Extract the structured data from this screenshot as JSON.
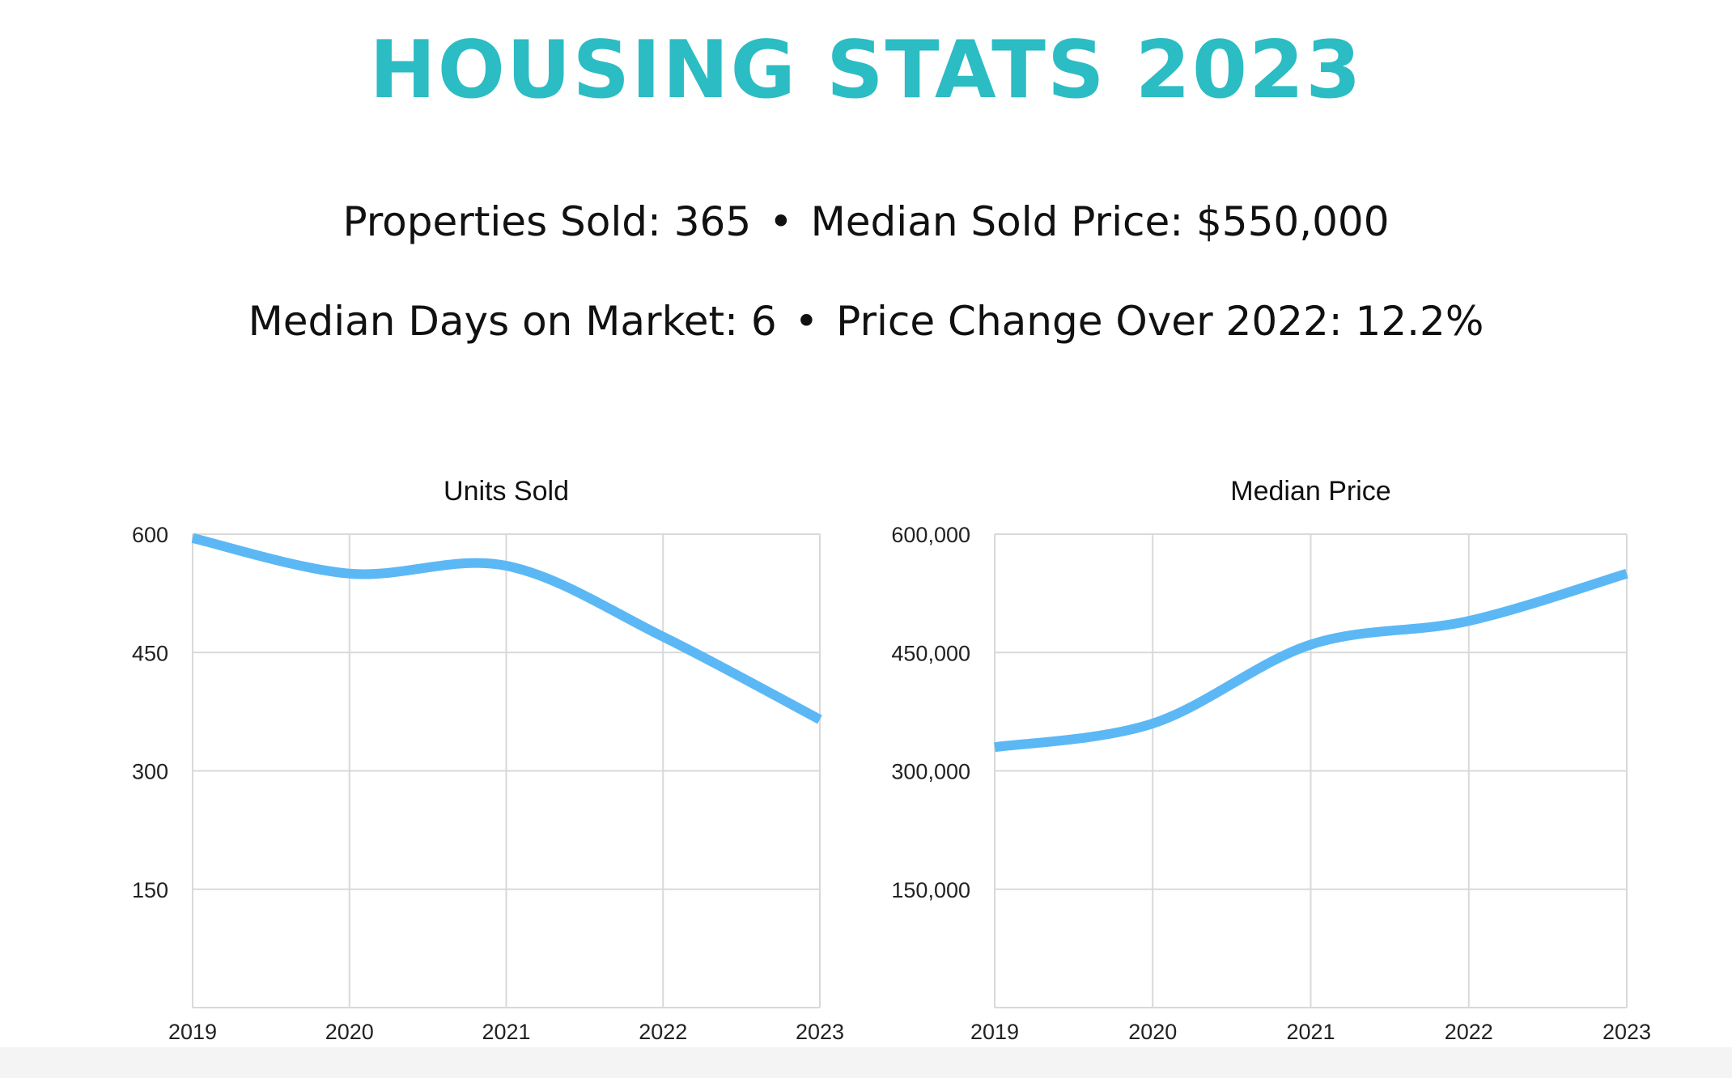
{
  "header": {
    "title": "HOUSING STATS 2023"
  },
  "stats": {
    "properties_sold": "Properties Sold: 365",
    "median_sold_price": "Median Sold Price: $550,000",
    "median_days": "Median Days on Market: 6",
    "price_change": "Price Change Over 2022: 12.2%",
    "separator": "•"
  },
  "colors": {
    "title": "#2bbcc4",
    "line": "#5bb8f5",
    "grid": "#d9d9d9"
  },
  "chart_data": [
    {
      "type": "line",
      "title": "Units Sold",
      "categories": [
        "2019",
        "2020",
        "2021",
        "2022",
        "2023"
      ],
      "values": [
        595,
        550,
        560,
        470,
        365
      ],
      "ylim": [
        0,
        600
      ],
      "yticks": [
        150,
        300,
        450,
        600
      ],
      "ytick_labels": [
        "150",
        "300",
        "450",
        "600"
      ],
      "grid": true
    },
    {
      "type": "line",
      "title": "Median Price",
      "categories": [
        "2019",
        "2020",
        "2021",
        "2022",
        "2023"
      ],
      "values": [
        330000,
        360000,
        460000,
        490000,
        550000
      ],
      "ylim": [
        0,
        600000
      ],
      "yticks": [
        150000,
        300000,
        450000,
        600000
      ],
      "ytick_labels": [
        "150,000",
        "300,000",
        "450,000",
        "600,000"
      ],
      "grid": true
    }
  ]
}
